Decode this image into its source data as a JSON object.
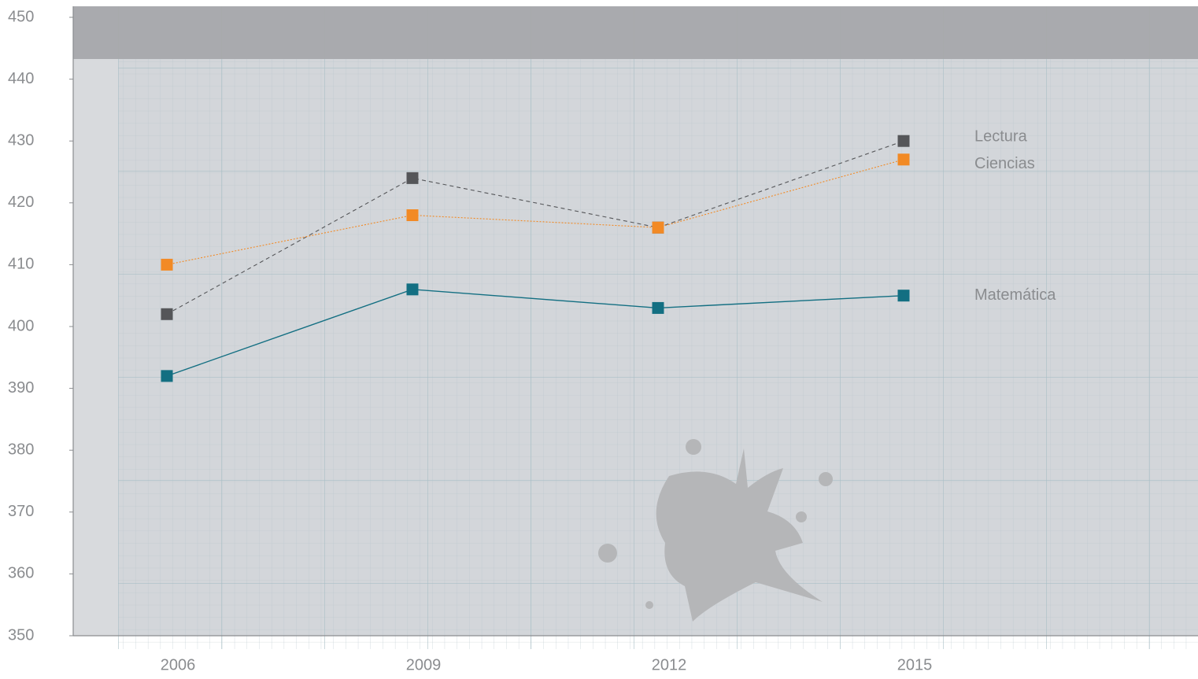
{
  "chart_data": {
    "type": "line",
    "categories": [
      "2006",
      "2009",
      "2012",
      "2015"
    ],
    "series": [
      {
        "name": "Lectura",
        "color": "#555659",
        "dash": "5,4",
        "values": [
          402,
          424,
          416,
          430
        ]
      },
      {
        "name": "Ciencias",
        "color": "#f28a25",
        "dash": "2,2",
        "values": [
          410,
          418,
          416,
          427
        ]
      },
      {
        "name": "Matemática",
        "color": "#136f82",
        "dash": "none",
        "values": [
          392,
          406,
          403,
          405
        ]
      }
    ],
    "ylim": [
      350,
      450
    ],
    "yticks": [
      350,
      360,
      370,
      380,
      390,
      400,
      410,
      420,
      430,
      440,
      450
    ]
  }
}
